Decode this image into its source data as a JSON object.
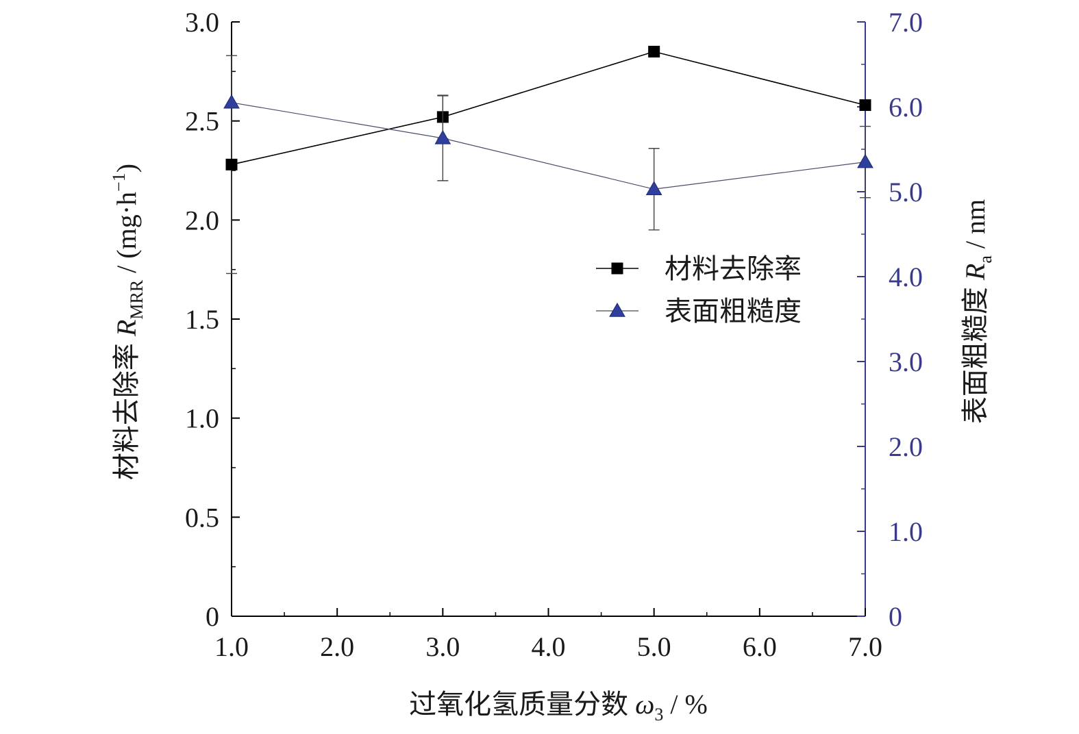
{
  "chart_data": {
    "type": "line",
    "xlabel": {
      "text": "过氧化氢质量分数 ",
      "symbol": "ω",
      "sub": "3",
      "unit": " / %"
    },
    "ylabel_left": {
      "text": "材料去除率 ",
      "symbol": "R",
      "sub": "MRR",
      "unit": " / (mg·h",
      "sup": "−1",
      "close": ")"
    },
    "ylabel_right": {
      "text": "表面粗糙度 ",
      "symbol": "R",
      "sub": "a",
      "unit": " / nm"
    },
    "x_ticks": [
      "1.0",
      "2.0",
      "3.0",
      "4.0",
      "5.0",
      "6.0",
      "7.0"
    ],
    "xlim": [
      1.0,
      7.0
    ],
    "y_left_ticks": [
      "0",
      "0.5",
      "1.0",
      "1.5",
      "2.0",
      "2.5",
      "3.0"
    ],
    "ylim_left": [
      0,
      3.0
    ],
    "y_right_ticks": [
      "0",
      "1.0",
      "2.0",
      "3.0",
      "4.0",
      "5.0",
      "6.0",
      "7.0"
    ],
    "ylim_right": [
      0,
      7.0
    ],
    "grid": false,
    "legend_position": "center-right",
    "series": [
      {
        "name": "材料去除率",
        "axis": "left",
        "marker": "square",
        "color": "#000000",
        "x": [
          1.0,
          3.0,
          5.0,
          7.0
        ],
        "y": [
          2.28,
          2.52,
          2.85,
          2.58
        ],
        "err": [
          0.55,
          0.11,
          0.0,
          0.0
        ]
      },
      {
        "name": "表面粗糙度",
        "axis": "right",
        "marker": "triangle",
        "color": "#2e3f9e",
        "x": [
          1.0,
          3.0,
          5.0,
          7.0
        ],
        "y": [
          6.05,
          5.63,
          5.03,
          5.35
        ],
        "err": [
          0.0,
          0.5,
          0.48,
          0.42
        ]
      }
    ]
  }
}
